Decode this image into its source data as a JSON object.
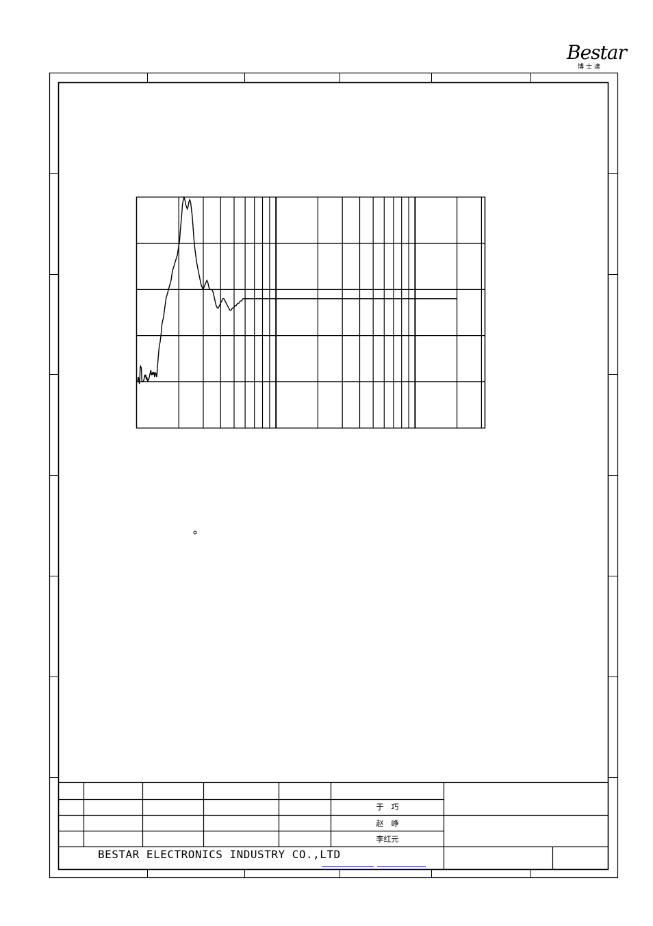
{
  "logo": {
    "brand": "Bestar",
    "subtitle": "博士達"
  },
  "title_block": {
    "names": [
      "于　巧",
      "赵　峥",
      "李红元"
    ],
    "company": "BESTAR ELECTRONICS INDUSTRY CO.,LTD"
  },
  "colors": {
    "line": "#000000",
    "link": "#3a3ad0"
  },
  "chart_data": {
    "type": "line",
    "x_scale": "log",
    "title": "",
    "xlabel": "",
    "ylabel": "",
    "grid": true,
    "rows": 5,
    "x_decades": 2.5,
    "ylim": [
      0,
      100
    ],
    "series": [
      {
        "x": [
          1.0,
          1.013,
          1.019,
          1.022,
          1.033,
          1.042,
          1.05,
          1.056,
          1.062,
          1.069,
          1.077,
          1.085,
          1.093,
          1.109,
          1.125,
          1.133,
          1.142,
          1.15,
          1.158,
          1.168,
          1.178,
          1.187,
          1.197,
          1.207,
          1.218,
          1.228,
          1.238,
          1.249,
          1.26,
          1.271,
          1.282,
          1.293,
          1.304,
          1.316,
          1.328,
          1.34,
          1.352,
          1.364,
          1.376,
          1.389,
          1.4,
          1.413,
          1.426,
          1.44,
          1.453,
          1.467,
          1.481,
          1.495,
          1.509,
          1.524,
          1.54,
          1.555,
          1.57,
          1.586,
          1.602,
          1.619,
          1.636,
          1.653,
          1.67,
          1.687,
          1.705,
          1.724,
          1.743,
          1.762,
          1.781,
          1.801,
          1.822,
          1.843,
          1.864,
          1.885,
          1.908,
          1.93,
          1.953,
          1.977,
          2.0,
          2.025,
          2.05,
          2.076,
          2.102,
          2.128,
          2.156,
          2.184,
          2.212,
          2.241,
          2.271,
          2.302,
          2.333,
          2.364,
          2.397,
          2.43,
          2.464,
          2.499,
          2.535,
          2.571,
          2.609,
          2.647,
          2.686,
          2.726,
          2.767,
          2.809,
          2.853,
          2.897,
          2.942,
          2.988,
          3.036,
          3.085,
          3.135,
          3.186,
          3.239,
          3.293,
          3.348,
          3.405,
          3.464,
          3.524,
          3.585,
          3.649,
          3.714,
          3.781,
          3.85,
          3.921,
          3.994,
          4.069,
          4.146,
          4.226,
          4.308,
          4.393,
          4.48,
          4.57,
          4.664,
          4.76,
          4.859,
          4.961,
          5.067,
          5.177,
          5.29,
          5.407,
          5.528,
          5.654,
          5.784,
          5.918,
          6.058,
          6.202,
          6.352,
          6.508,
          6.669,
          6.837,
          7.011,
          7.191,
          7.379,
          7.575,
          7.778,
          7.99,
          8.21,
          8.44,
          8.679,
          8.929,
          9.19,
          9.462,
          9.747,
          10.045,
          10.357,
          10.684,
          11.026,
          11.386,
          11.763,
          12.159,
          12.576,
          13.014,
          13.476,
          13.963,
          14.477,
          15.02,
          15.594,
          16.203,
          16.849,
          17.534,
          18.264,
          19.041,
          19.87,
          20.757,
          21.707,
          22.727,
          23.825,
          25.01,
          26.294,
          27.689,
          29.211,
          30.877,
          32.711,
          34.74,
          36.998,
          39.528,
          42.385,
          45.642,
          49.397,
          53.786,
          59.0,
          65.315,
          73.17,
          83.307,
          96.837,
          116.025,
          145.89,
          200.0,
          316.228
        ],
        "y": [
          20,
          20,
          21,
          22,
          21,
          19,
          22,
          26,
          27,
          26,
          26,
          20,
          20,
          20,
          21,
          22,
          23,
          22,
          23,
          21,
          22,
          21,
          20,
          21,
          21,
          22,
          23,
          24,
          25,
          23,
          23,
          24,
          23,
          24,
          24,
          22,
          23,
          24,
          23,
          22,
          25,
          28,
          31,
          34,
          36,
          37,
          39,
          41,
          44,
          46,
          47,
          48,
          50,
          52,
          54,
          56,
          57,
          58,
          59,
          60,
          61,
          62,
          63,
          64,
          66,
          68,
          69,
          70,
          71,
          72,
          73,
          74,
          75,
          77,
          79,
          81,
          85,
          89,
          93,
          97,
          99,
          100,
          99,
          97,
          96,
          95,
          96,
          98,
          99,
          98,
          95,
          92,
          87,
          82,
          78,
          75,
          72,
          70,
          68,
          66,
          64,
          62,
          61,
          60,
          61,
          62,
          63,
          64,
          63,
          61,
          60,
          60,
          60,
          59,
          57,
          55,
          53,
          52,
          52,
          53,
          54,
          55,
          56,
          56,
          55,
          54,
          53,
          52,
          51,
          51,
          52,
          52,
          53,
          53,
          54,
          54,
          55,
          55,
          56,
          56,
          56,
          56,
          56,
          56,
          56,
          56,
          56,
          56,
          56,
          56,
          56,
          56,
          56,
          56,
          56,
          56,
          56,
          56,
          56,
          56,
          56,
          56,
          56,
          56,
          56,
          56,
          56,
          56,
          56,
          56,
          56,
          56,
          56,
          56,
          56,
          56,
          56,
          56,
          56,
          56,
          56,
          56,
          56,
          56,
          56,
          56,
          56,
          56,
          56,
          56,
          56,
          56,
          56,
          56,
          56,
          56,
          56,
          56,
          56,
          56,
          56,
          56,
          56,
          56,
          56
        ]
      }
    ]
  }
}
